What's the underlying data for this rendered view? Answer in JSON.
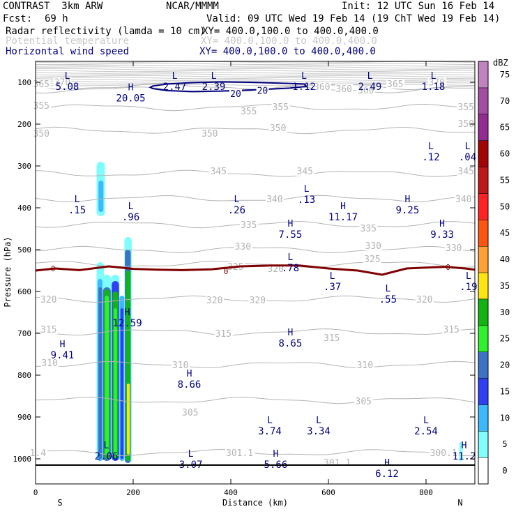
{
  "header": {
    "model": "CONTRAST  3km ARW",
    "center": "NCAR/MMMM",
    "init": "Init: 12 UTC Sun 16 Feb 14",
    "fcst_label": "Fcst:",
    "fcst_value": "69 h",
    "valid": "Valid: 09 UTC Wed 19 Feb 14 (19 ChT Wed 19 Feb 14)",
    "fields": [
      {
        "name": "Radar reflectivity (lamda = 10 cm)",
        "xy": "XY= 400.0,100.0 to 400.0,400.0",
        "color": "#000000"
      },
      {
        "name": "Potential temperature",
        "xy": "XY= 400.0,100.0 to 400.0,400.0",
        "color": "#c8c8c8"
      },
      {
        "name": "Horizontal wind speed",
        "xy": "XY= 400.0,100.0 to 400.0,400.0",
        "color": "#00007f"
      }
    ]
  },
  "chart_data": {
    "type": "cross-section",
    "xlabel": "Distance (km)",
    "ylabel": "Pressure (hPa)",
    "xlim": [
      0,
      900
    ],
    "ylim": [
      1060,
      50
    ],
    "x_ticks": [
      0,
      200,
      400,
      600,
      800
    ],
    "y_ticks": [
      100,
      200,
      300,
      400,
      500,
      600,
      700,
      800,
      900,
      1000
    ],
    "x_end_labels": {
      "left": "S",
      "right": "N"
    },
    "colorbar": {
      "unit": "dBZ",
      "levels": [
        0,
        5,
        10,
        15,
        20,
        25,
        30,
        35,
        40,
        45,
        50,
        55,
        60,
        65,
        70,
        75
      ],
      "colors": [
        "#ffffff",
        "#7ffcfc",
        "#3bb9fb",
        "#2f3ff3",
        "#3c73c4",
        "#2cf12c",
        "#12b412",
        "#ffe510",
        "#ffa032",
        "#fe5513",
        "#ff2323",
        "#c01818",
        "#a30505",
        "#922b92",
        "#a14ea2",
        "#c083c0"
      ]
    },
    "theta_isentropes": [
      {
        "value": 365,
        "p": 110
      },
      {
        "value": 360,
        "p": 118
      },
      {
        "value": 355,
        "p": 160
      },
      {
        "value": 350,
        "p": 215
      },
      {
        "value": 345,
        "p": 318
      },
      {
        "value": 340,
        "p": 378
      },
      {
        "value": 335,
        "p": 440
      },
      {
        "value": 330,
        "p": 500
      },
      {
        "value": 325,
        "p": 535
      },
      {
        "value": 320,
        "p": 618
      },
      {
        "value": 315,
        "p": 697
      },
      {
        "value": 310,
        "p": 775
      },
      {
        "value": 305,
        "p": 860
      },
      {
        "value": 300,
        "p": 985
      }
    ],
    "theta_labels": [
      {
        "text": "365",
        "x": -5,
        "p": 103
      },
      {
        "text": "370",
        "x": 38,
        "p": 99
      },
      {
        "text": "360",
        "x": 615,
        "p": 115
      },
      {
        "text": "360",
        "x": 660,
        "p": 118
      },
      {
        "text": "365",
        "x": 720,
        "p": 103
      },
      {
        "text": "370",
        "x": 805,
        "p": 99
      },
      {
        "text": "360",
        "x": 570,
        "p": 110
      },
      {
        "text": "355",
        "x": -5,
        "p": 155
      },
      {
        "text": "355",
        "x": 420,
        "p": 168
      },
      {
        "text": "355",
        "x": 485,
        "p": 158
      },
      {
        "text": "355",
        "x": 865,
        "p": 158
      },
      {
        "text": "350",
        "x": -5,
        "p": 222
      },
      {
        "text": "350",
        "x": 340,
        "p": 222
      },
      {
        "text": "350",
        "x": 480,
        "p": 208
      },
      {
        "text": "350",
        "x": 865,
        "p": 198
      },
      {
        "text": "345",
        "x": 358,
        "p": 312
      },
      {
        "text": "345",
        "x": 535,
        "p": 312
      },
      {
        "text": "345",
        "x": 865,
        "p": 312
      },
      {
        "text": "340",
        "x": 473,
        "p": 378
      },
      {
        "text": "340",
        "x": 860,
        "p": 378
      },
      {
        "text": "335",
        "x": 420,
        "p": 440
      },
      {
        "text": "335",
        "x": 665,
        "p": 448
      },
      {
        "text": "330",
        "x": 408,
        "p": 492
      },
      {
        "text": "330",
        "x": 675,
        "p": 490
      },
      {
        "text": "330",
        "x": 840,
        "p": 495
      },
      {
        "text": "325",
        "x": 393,
        "p": 540
      },
      {
        "text": "325",
        "x": 673,
        "p": 522
      },
      {
        "text": "320",
        "x": 475,
        "p": 545
      },
      {
        "text": "320",
        "x": 10,
        "p": 618
      },
      {
        "text": "320",
        "x": 350,
        "p": 620
      },
      {
        "text": "320",
        "x": 438,
        "p": 620
      },
      {
        "text": "320",
        "x": 780,
        "p": 618
      },
      {
        "text": "315",
        "x": 10,
        "p": 690
      },
      {
        "text": "315",
        "x": 368,
        "p": 700
      },
      {
        "text": "315",
        "x": 590,
        "p": 710
      },
      {
        "text": "315",
        "x": 835,
        "p": 690
      },
      {
        "text": "310",
        "x": 12,
        "p": 770
      },
      {
        "text": "310",
        "x": 280,
        "p": 775
      },
      {
        "text": "310",
        "x": 658,
        "p": 775
      },
      {
        "text": "305",
        "x": 300,
        "p": 888
      },
      {
        "text": "305",
        "x": 655,
        "p": 862
      },
      {
        "text": "301.1",
        "x": 390,
        "p": 985
      },
      {
        "text": "301.1",
        "x": 590,
        "p": 1008
      },
      {
        "text": "300.1",
        "x": 808,
        "p": 985
      },
      {
        "text": "1.4",
        "x": -12,
        "p": 985
      }
    ],
    "zero_isotherm": [
      [
        0,
        550
      ],
      [
        40,
        545
      ],
      [
        90,
        549
      ],
      [
        150,
        540
      ],
      [
        200,
        546
      ],
      [
        250,
        548
      ],
      [
        300,
        549
      ],
      [
        360,
        547
      ],
      [
        420,
        540
      ],
      [
        480,
        538
      ],
      [
        540,
        538
      ],
      [
        600,
        545
      ],
      [
        660,
        550
      ],
      [
        710,
        560
      ],
      [
        760,
        545
      ],
      [
        800,
        543
      ],
      [
        840,
        541
      ],
      [
        880,
        545
      ],
      [
        900,
        548
      ]
    ],
    "zero_labels": [
      {
        "text": "0",
        "x": 36,
        "p": 545
      },
      {
        "text": "0",
        "x": 390,
        "p": 552
      },
      {
        "text": "0",
        "x": 845,
        "p": 542
      }
    ],
    "wind_contour_20": [
      [
        240,
        109
      ],
      [
        270,
        104
      ],
      [
        320,
        101
      ],
      [
        380,
        99
      ],
      [
        440,
        100
      ],
      [
        500,
        102
      ],
      [
        550,
        104
      ],
      [
        555,
        110
      ],
      [
        520,
        114
      ],
      [
        450,
        118
      ],
      [
        380,
        121
      ],
      [
        320,
        122
      ],
      [
        270,
        120
      ],
      [
        240,
        115
      ],
      [
        235,
        112
      ]
    ],
    "wind_labels": [
      {
        "text": "20",
        "x": 410,
        "p": 128
      },
      {
        "text": "20",
        "x": 465,
        "p": 121
      }
    ],
    "extrema": [
      {
        "kind": "L",
        "value": "5.08",
        "x": 65,
        "p": 97
      },
      {
        "kind": "L",
        "value": "2.47",
        "x": 285,
        "p": 97
      },
      {
        "kind": "L",
        "value": "2.39",
        "x": 365,
        "p": 97
      },
      {
        "kind": "L",
        "value": "1.12",
        "x": 550,
        "p": 97
      },
      {
        "kind": "L",
        "value": "2.49",
        "x": 685,
        "p": 97
      },
      {
        "kind": "L",
        "value": "1.18",
        "x": 815,
        "p": 97
      },
      {
        "kind": "H",
        "value": "20.05",
        "x": 195,
        "p": 124
      },
      {
        "kind": "L",
        "value": ".12",
        "x": 810,
        "p": 265
      },
      {
        "kind": "L",
        "value": ".04",
        "x": 885,
        "p": 265
      },
      {
        "kind": "L",
        "value": ".13",
        "x": 555,
        "p": 367
      },
      {
        "kind": "L",
        "value": ".15",
        "x": 85,
        "p": 392
      },
      {
        "kind": "L",
        "value": ".96",
        "x": 195,
        "p": 408
      },
      {
        "kind": "L",
        "value": ".26",
        "x": 412,
        "p": 392
      },
      {
        "kind": "H",
        "value": "11.17",
        "x": 630,
        "p": 408
      },
      {
        "kind": "H",
        "value": "9.25",
        "x": 762,
        "p": 392
      },
      {
        "kind": "H",
        "value": "7.55",
        "x": 522,
        "p": 450
      },
      {
        "kind": "H",
        "value": "9.33",
        "x": 833,
        "p": 450
      },
      {
        "kind": "L",
        "value": ".78",
        "x": 522,
        "p": 530
      },
      {
        "kind": "L",
        "value": ".37",
        "x": 608,
        "p": 575
      },
      {
        "kind": "L",
        "value": ".55",
        "x": 722,
        "p": 605
      },
      {
        "kind": "L",
        "value": ".19",
        "x": 887,
        "p": 575
      },
      {
        "kind": "H",
        "value": "12.59",
        "x": 188,
        "p": 662
      },
      {
        "kind": "H",
        "value": "8.65",
        "x": 522,
        "p": 710
      },
      {
        "kind": "H",
        "value": "9.41",
        "x": 55,
        "p": 738
      },
      {
        "kind": "H",
        "value": "8.66",
        "x": 315,
        "p": 808
      },
      {
        "kind": "L",
        "value": "3.74",
        "x": 480,
        "p": 920
      },
      {
        "kind": "L",
        "value": "3.34",
        "x": 580,
        "p": 920
      },
      {
        "kind": "L",
        "value": "2.54",
        "x": 800,
        "p": 920
      },
      {
        "kind": "L",
        "value": "2.06",
        "x": 145,
        "p": 980
      },
      {
        "kind": "L",
        "value": "3.07",
        "x": 318,
        "p": 1000
      },
      {
        "kind": "H",
        "value": "5.66",
        "x": 492,
        "p": 1000
      },
      {
        "kind": "H",
        "value": "11.2",
        "x": 878,
        "p": 980
      },
      {
        "kind": "H",
        "value": "6.12",
        "x": 720,
        "p": 1022
      }
    ],
    "reflectivity_cells": [
      {
        "x0": 125,
        "x1": 140,
        "p0": 1005,
        "p1": 530,
        "dbz": 5
      },
      {
        "x0": 127,
        "x1": 137,
        "p0": 1005,
        "p1": 570,
        "dbz": 10
      },
      {
        "x0": 129,
        "x1": 136,
        "p0": 1000,
        "p1": 590,
        "dbz": 20
      },
      {
        "x0": 137,
        "x1": 155,
        "p0": 1005,
        "p1": 560,
        "dbz": 5
      },
      {
        "x0": 138,
        "x1": 154,
        "p0": 1005,
        "p1": 590,
        "dbz": 20
      },
      {
        "x0": 140,
        "x1": 152,
        "p0": 1000,
        "p1": 595,
        "dbz": 30
      },
      {
        "x0": 142,
        "x1": 150,
        "p0": 990,
        "p1": 610,
        "dbz": 25
      },
      {
        "x0": 155,
        "x1": 172,
        "p0": 1005,
        "p1": 560,
        "dbz": 5
      },
      {
        "x0": 156,
        "x1": 171,
        "p0": 1005,
        "p1": 575,
        "dbz": 15
      },
      {
        "x0": 158,
        "x1": 169,
        "p0": 1000,
        "p1": 600,
        "dbz": 30
      },
      {
        "x0": 160,
        "x1": 167,
        "p0": 995,
        "p1": 640,
        "dbz": 25
      },
      {
        "x0": 172,
        "x1": 182,
        "p0": 1005,
        "p1": 610,
        "dbz": 10
      },
      {
        "x0": 174,
        "x1": 180,
        "p0": 1000,
        "p1": 640,
        "dbz": 15
      },
      {
        "x0": 182,
        "x1": 197,
        "p0": 1010,
        "p1": 470,
        "dbz": 5
      },
      {
        "x0": 183,
        "x1": 195,
        "p0": 1010,
        "p1": 500,
        "dbz": 20
      },
      {
        "x0": 185,
        "x1": 194,
        "p0": 1005,
        "p1": 550,
        "dbz": 30
      },
      {
        "x0": 187,
        "x1": 193,
        "p0": 990,
        "p1": 820,
        "dbz": 35
      },
      {
        "x0": 125,
        "x1": 142,
        "p0": 420,
        "p1": 290,
        "dbz": 5
      },
      {
        "x0": 129,
        "x1": 139,
        "p0": 410,
        "p1": 335,
        "dbz": 10
      },
      {
        "x0": 868,
        "x1": 875,
        "p0": 1005,
        "p1": 960,
        "dbz": 5
      }
    ]
  }
}
